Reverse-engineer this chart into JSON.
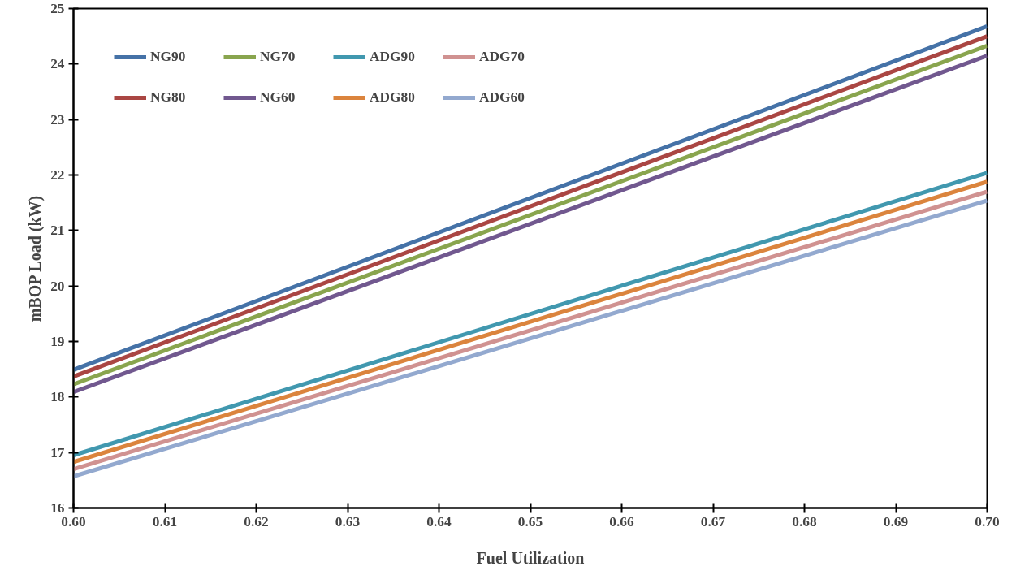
{
  "chart_data": {
    "type": "line",
    "xlabel": "Fuel Utilization",
    "ylabel": "mBOP Load (kW)",
    "x": [
      0.6,
      0.7
    ],
    "xlim": [
      0.6,
      0.7
    ],
    "ylim": [
      16,
      25
    ],
    "xticks": [
      {
        "value": 0.6,
        "label": "0.60"
      },
      {
        "value": 0.61,
        "label": "0.61"
      },
      {
        "value": 0.62,
        "label": "0.62"
      },
      {
        "value": 0.63,
        "label": "0.63"
      },
      {
        "value": 0.64,
        "label": "0.64"
      },
      {
        "value": 0.65,
        "label": "0.65"
      },
      {
        "value": 0.66,
        "label": "0.66"
      },
      {
        "value": 0.67,
        "label": "0.67"
      },
      {
        "value": 0.68,
        "label": "0.68"
      },
      {
        "value": 0.69,
        "label": "0.69"
      },
      {
        "value": 0.7,
        "label": "0.70"
      }
    ],
    "yticks": [
      16,
      17,
      18,
      19,
      20,
      21,
      22,
      23,
      24,
      25
    ],
    "grid": false,
    "legend": "top left",
    "marker": "none",
    "line_style": "solid",
    "series": [
      {
        "name": "NG90",
        "color": "#4572a7",
        "values": [
          18.49,
          24.68
        ]
      },
      {
        "name": "NG80",
        "color": "#aa4643",
        "values": [
          18.37,
          24.5
        ]
      },
      {
        "name": "NG70",
        "color": "#89a54e",
        "values": [
          18.23,
          24.33
        ]
      },
      {
        "name": "NG60",
        "color": "#71588f",
        "values": [
          18.09,
          24.15
        ]
      },
      {
        "name": "ADG90",
        "color": "#4198af",
        "values": [
          16.95,
          22.04
        ]
      },
      {
        "name": "ADG80",
        "color": "#db843d",
        "values": [
          16.83,
          21.88
        ]
      },
      {
        "name": "ADG70",
        "color": "#d09291",
        "values": [
          16.7,
          21.7
        ]
      },
      {
        "name": "ADG60",
        "color": "#93a9cf",
        "values": [
          16.57,
          21.54
        ]
      }
    ]
  }
}
